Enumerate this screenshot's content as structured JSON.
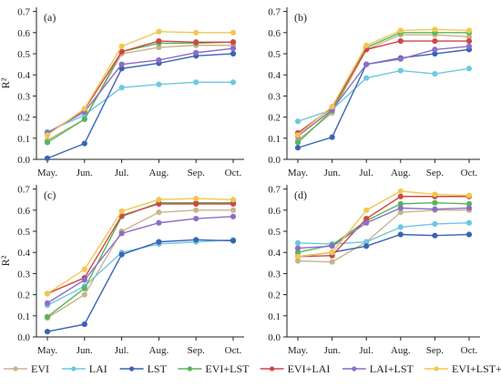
{
  "figure": {
    "ylabel": "R²",
    "x_categories": [
      "May.",
      "Jun.",
      "Jul.",
      "Aug.",
      "Sep.",
      "Oct."
    ],
    "y_ticks": [
      "0.0",
      "0.1",
      "0.2",
      "0.3",
      "0.4",
      "0.5",
      "0.6",
      "0.7"
    ],
    "ylim": [
      0,
      0.72
    ],
    "grid": false,
    "legend_position": "bottom"
  },
  "legend": [
    {
      "name": "EVI",
      "color": "#c8b48c"
    },
    {
      "name": "LAI",
      "color": "#6ec8e0"
    },
    {
      "name": "LST",
      "color": "#3a64b4"
    },
    {
      "name": "EVI+LST",
      "color": "#5ab45a"
    },
    {
      "name": "EVI+LAI",
      "color": "#d24646"
    },
    {
      "name": "LAI+LST",
      "color": "#8c6ec8"
    },
    {
      "name": "EVI+LST+LAI",
      "color": "#f0c850"
    }
  ],
  "chart_data": [
    {
      "type": "line",
      "panel_label": "(a)",
      "categories": [
        "May.",
        "Jun.",
        "Jul.",
        "Aug.",
        "Sep.",
        "Oct."
      ],
      "ylim": [
        0,
        0.72
      ],
      "series": [
        {
          "name": "EVI",
          "values": [
            0.09,
            0.19,
            0.5,
            0.53,
            0.54,
            0.54
          ]
        },
        {
          "name": "LAI",
          "values": [
            0.13,
            0.21,
            0.34,
            0.355,
            0.365,
            0.365
          ]
        },
        {
          "name": "LST",
          "values": [
            0.005,
            0.075,
            0.43,
            0.455,
            0.49,
            0.5
          ]
        },
        {
          "name": "EVI+LST",
          "values": [
            0.08,
            0.19,
            0.51,
            0.55,
            0.55,
            0.555
          ]
        },
        {
          "name": "EVI+LAI",
          "values": [
            0.12,
            0.235,
            0.51,
            0.56,
            0.555,
            0.555
          ]
        },
        {
          "name": "LAI+LST",
          "values": [
            0.125,
            0.225,
            0.45,
            0.47,
            0.505,
            0.525
          ]
        },
        {
          "name": "EVI+LST+LAI",
          "values": [
            0.115,
            0.24,
            0.535,
            0.605,
            0.6,
            0.6
          ]
        }
      ]
    },
    {
      "type": "line",
      "panel_label": "(b)",
      "categories": [
        "May.",
        "Jun.",
        "Jul.",
        "Aug.",
        "Sep.",
        "Oct."
      ],
      "ylim": [
        0,
        0.72
      ],
      "series": [
        {
          "name": "EVI",
          "values": [
            0.09,
            0.22,
            0.52,
            0.59,
            0.59,
            0.58
          ]
        },
        {
          "name": "LAI",
          "values": [
            0.18,
            0.235,
            0.385,
            0.42,
            0.405,
            0.43
          ]
        },
        {
          "name": "LST",
          "values": [
            0.055,
            0.105,
            0.45,
            0.48,
            0.5,
            0.52
          ]
        },
        {
          "name": "EVI+LST",
          "values": [
            0.08,
            0.23,
            0.53,
            0.6,
            0.6,
            0.6
          ]
        },
        {
          "name": "EVI+LAI",
          "values": [
            0.125,
            0.245,
            0.52,
            0.56,
            0.56,
            0.56
          ]
        },
        {
          "name": "LAI+LST",
          "values": [
            0.11,
            0.235,
            0.45,
            0.475,
            0.52,
            0.535
          ]
        },
        {
          "name": "EVI+LST+LAI",
          "values": [
            0.115,
            0.25,
            0.54,
            0.61,
            0.615,
            0.61
          ]
        }
      ]
    },
    {
      "type": "line",
      "panel_label": "(c)",
      "categories": [
        "May.",
        "Jun.",
        "Jul.",
        "Aug.",
        "Sep.",
        "Oct."
      ],
      "ylim": [
        0,
        0.72
      ],
      "series": [
        {
          "name": "EVI",
          "values": [
            0.09,
            0.2,
            0.5,
            0.59,
            0.6,
            0.6
          ]
        },
        {
          "name": "LAI",
          "values": [
            0.15,
            0.24,
            0.4,
            0.44,
            0.45,
            0.46
          ]
        },
        {
          "name": "LST",
          "values": [
            0.025,
            0.06,
            0.39,
            0.45,
            0.46,
            0.455
          ]
        },
        {
          "name": "EVI+LST",
          "values": [
            0.095,
            0.23,
            0.57,
            0.635,
            0.635,
            0.635
          ]
        },
        {
          "name": "EVI+LAI",
          "values": [
            0.205,
            0.28,
            0.575,
            0.63,
            0.63,
            0.63
          ]
        },
        {
          "name": "LAI+LST",
          "values": [
            0.16,
            0.27,
            0.49,
            0.54,
            0.56,
            0.57
          ]
        },
        {
          "name": "EVI+LST+LAI",
          "values": [
            0.205,
            0.32,
            0.595,
            0.65,
            0.655,
            0.65
          ]
        }
      ]
    },
    {
      "type": "line",
      "panel_label": "(d)",
      "categories": [
        "May.",
        "Jun.",
        "Jul.",
        "Aug.",
        "Sep.",
        "Oct."
      ],
      "ylim": [
        0,
        0.72
      ],
      "series": [
        {
          "name": "EVI",
          "values": [
            0.36,
            0.355,
            0.45,
            0.59,
            0.6,
            0.6
          ]
        },
        {
          "name": "LAI",
          "values": [
            0.445,
            0.44,
            0.45,
            0.52,
            0.535,
            0.54
          ]
        },
        {
          "name": "LST",
          "values": [
            0.38,
            0.4,
            0.43,
            0.485,
            0.48,
            0.485
          ]
        },
        {
          "name": "EVI+LST",
          "values": [
            0.4,
            0.435,
            0.55,
            0.63,
            0.635,
            0.63
          ]
        },
        {
          "name": "EVI+LAI",
          "values": [
            0.38,
            0.385,
            0.56,
            0.665,
            0.665,
            0.665
          ]
        },
        {
          "name": "LAI+LST",
          "values": [
            0.42,
            0.43,
            0.54,
            0.61,
            0.605,
            0.61
          ]
        },
        {
          "name": "EVI+LST+LAI",
          "values": [
            0.38,
            0.4,
            0.6,
            0.69,
            0.675,
            0.67
          ]
        }
      ]
    }
  ]
}
